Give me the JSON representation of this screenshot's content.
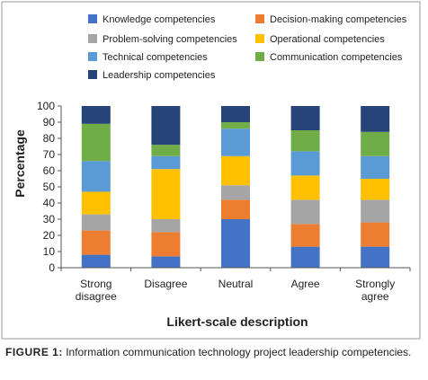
{
  "figure": {
    "label": "FIGURE 1:",
    "caption": "Information communication technology project leadership competencies."
  },
  "chart_data": {
    "type": "bar",
    "stacked": true,
    "categories": [
      "Strong disagree",
      "Disagree",
      "Neutral",
      "Agree",
      "Strongly agree"
    ],
    "category_lines": [
      [
        "Strong",
        "disagree"
      ],
      [
        "Disagree"
      ],
      [
        "Neutral"
      ],
      [
        "Agree"
      ],
      [
        "Strongly",
        "agree"
      ]
    ],
    "xlabel": "Likert-scale description",
    "ylabel": "Percentage",
    "ylim": [
      0,
      100
    ],
    "yticks": [
      0,
      10,
      20,
      30,
      40,
      50,
      60,
      70,
      80,
      90,
      100
    ],
    "grid": false,
    "legend_position": "top",
    "series": [
      {
        "name": "Knowledge competencies",
        "color": "#4472C4",
        "values": [
          8,
          7,
          30,
          13,
          13
        ]
      },
      {
        "name": "Decision-making competencies",
        "color": "#ED7D31",
        "values": [
          15,
          15,
          12,
          14,
          15
        ]
      },
      {
        "name": "Problem-solving competencies",
        "color": "#A5A5A5",
        "values": [
          10,
          8,
          9,
          15,
          14
        ]
      },
      {
        "name": "Operational competencies",
        "color": "#FFC000",
        "values": [
          14,
          31,
          18,
          15,
          13
        ]
      },
      {
        "name": "Technical competencies",
        "color": "#5B9BD5",
        "values": [
          19,
          8,
          17,
          15,
          14
        ]
      },
      {
        "name": "Communication competencies",
        "color": "#70AD47",
        "values": [
          23,
          7,
          4,
          13,
          15
        ]
      },
      {
        "name": "Leadership competencies",
        "color": "#264478",
        "values": [
          11,
          24,
          10,
          15,
          16
        ]
      }
    ]
  }
}
